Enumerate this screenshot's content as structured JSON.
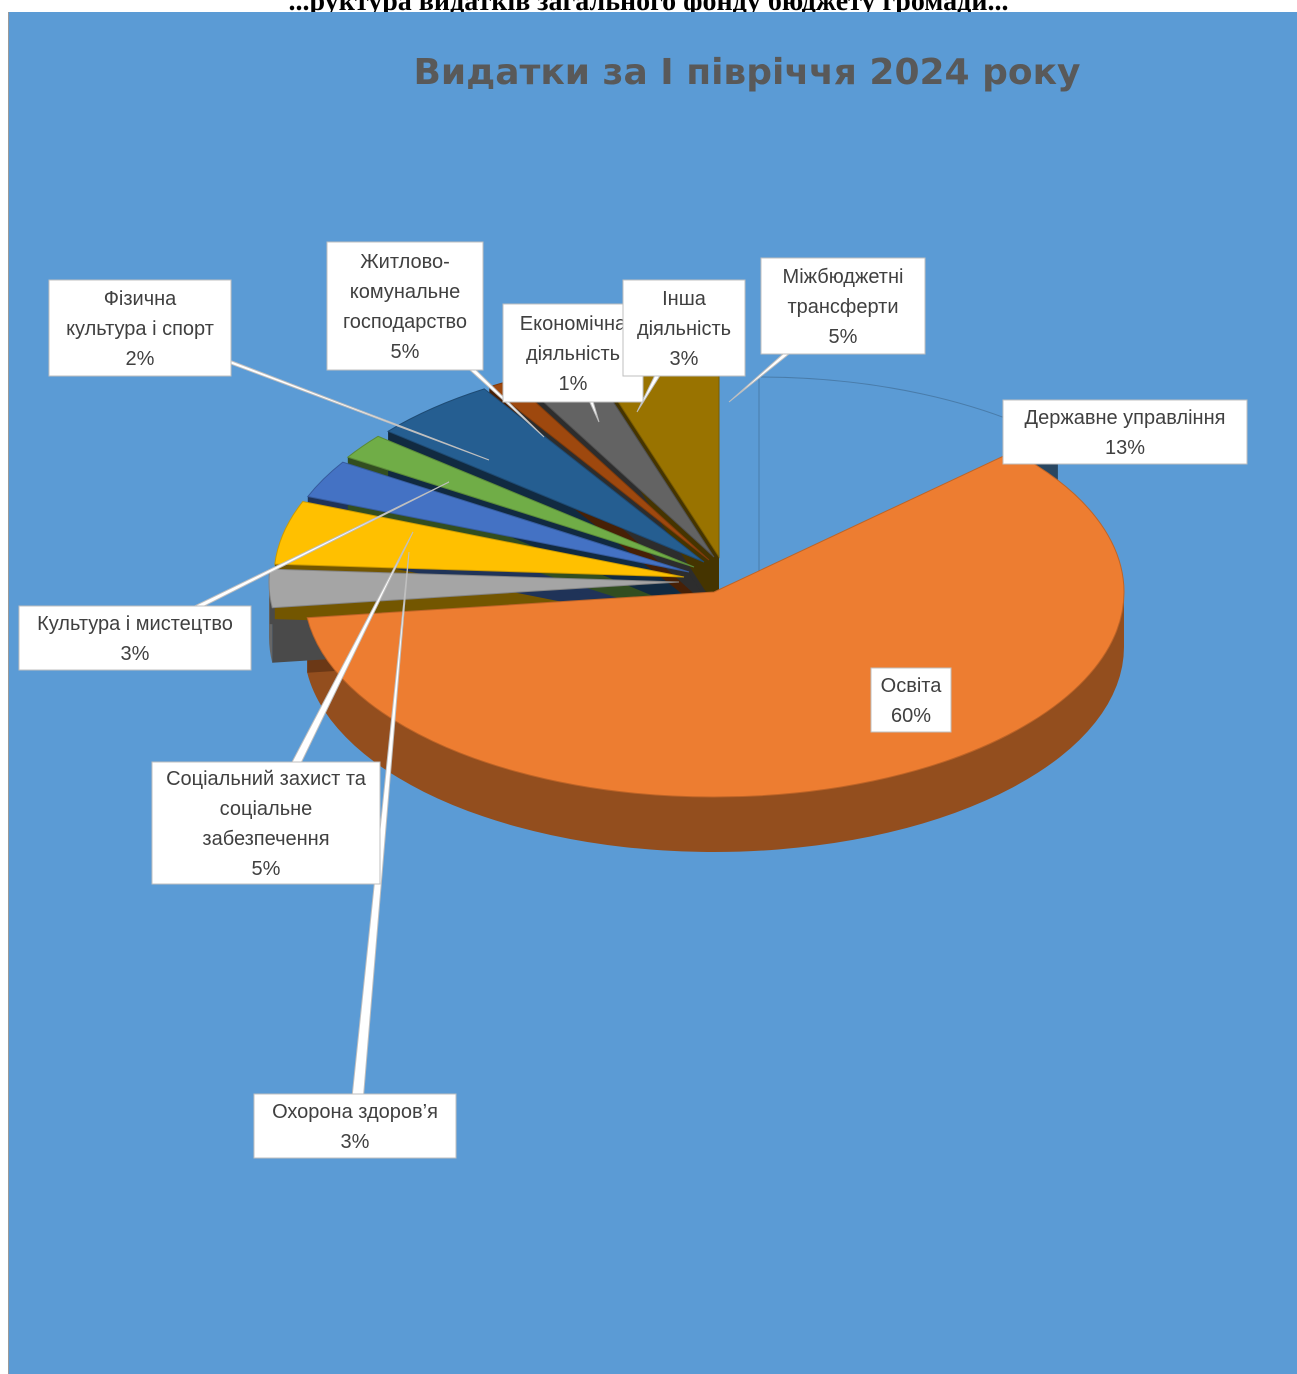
{
  "header": {
    "caption": "...руктура видатків загального фонду бюджету громади..."
  },
  "chart_data": {
    "type": "pie",
    "style": "3d-exploded",
    "title": "Видатки за I півріччя 2024 року",
    "background_color": "#5b9bd5",
    "legend": "none",
    "slices": [
      {
        "label": "Державне управління",
        "value": 13,
        "display": "13%",
        "color": "#5b9bd5"
      },
      {
        "label": "Освіта",
        "value": 60,
        "display": "60%",
        "color": "#ed7d31"
      },
      {
        "label": "Охорона здоров’я",
        "value": 3,
        "display": "3%",
        "color": "#a5a5a5"
      },
      {
        "label": "Соціальний захист та соціальне забезпечення",
        "value": 5,
        "display": "5%",
        "color": "#ffc000"
      },
      {
        "label": "Культура і мистецтво",
        "value": 3,
        "display": "3%",
        "color": "#4472c4"
      },
      {
        "label": "Фізична культура і спорт",
        "value": 2,
        "display": "2%",
        "color": "#70ad47"
      },
      {
        "label": "Житлово-комунальне господарство",
        "value": 5,
        "display": "5%",
        "color": "#255e91"
      },
      {
        "label": "Економічна діяльність",
        "value": 1,
        "display": "1%",
        "color": "#9e480e"
      },
      {
        "label": "Інша діяльність",
        "value": 3,
        "display": "3%",
        "color": "#636363"
      },
      {
        "label": "Міжбюджетні трансферти",
        "value": 5,
        "display": "5%",
        "color": "#997300"
      }
    ]
  }
}
